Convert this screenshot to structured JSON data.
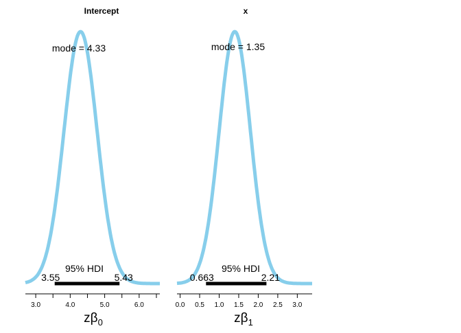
{
  "chart_data": [
    {
      "type": "area",
      "title": "Intercept",
      "xlabel_main": "zβ",
      "xlabel_sub": "0",
      "xlim": [
        2.7,
        6.6
      ],
      "ticks": [
        3.0,
        4.0,
        5.0,
        6.0
      ],
      "tick_labels": [
        "3.0",
        "4.0",
        "5.0",
        "6.0"
      ],
      "mode": 4.33,
      "mode_text": "mode = 4.33",
      "hdi": [
        3.55,
        5.43
      ],
      "hdi_label": "95% HDI",
      "hdi_low_text": "3.55",
      "hdi_high_text": "5.43",
      "density_color": "#87CEEB",
      "curve": {
        "x": [
          2.7,
          6.6
        ],
        "center": 4.3,
        "sd": 0.48
      }
    },
    {
      "type": "area",
      "title": "x",
      "xlabel_main": "zβ",
      "xlabel_sub": "1",
      "xlim": [
        -0.08,
        3.38
      ],
      "ticks": [
        0.0,
        0.5,
        1.0,
        1.5,
        2.0,
        2.5,
        3.0
      ],
      "tick_labels": [
        "0.0",
        "0.5",
        "1.0",
        "1.5",
        "2.0",
        "2.5",
        "3.0"
      ],
      "mode": 1.35,
      "mode_text": "mode = 1.35",
      "hdi": [
        0.663,
        2.21
      ],
      "hdi_label": "95% HDI",
      "hdi_low_text": "0.663",
      "hdi_high_text": "2.21",
      "density_color": "#87CEEB",
      "curve": {
        "x": [
          -0.08,
          3.38
        ],
        "center": 1.4,
        "sd": 0.4
      }
    }
  ]
}
